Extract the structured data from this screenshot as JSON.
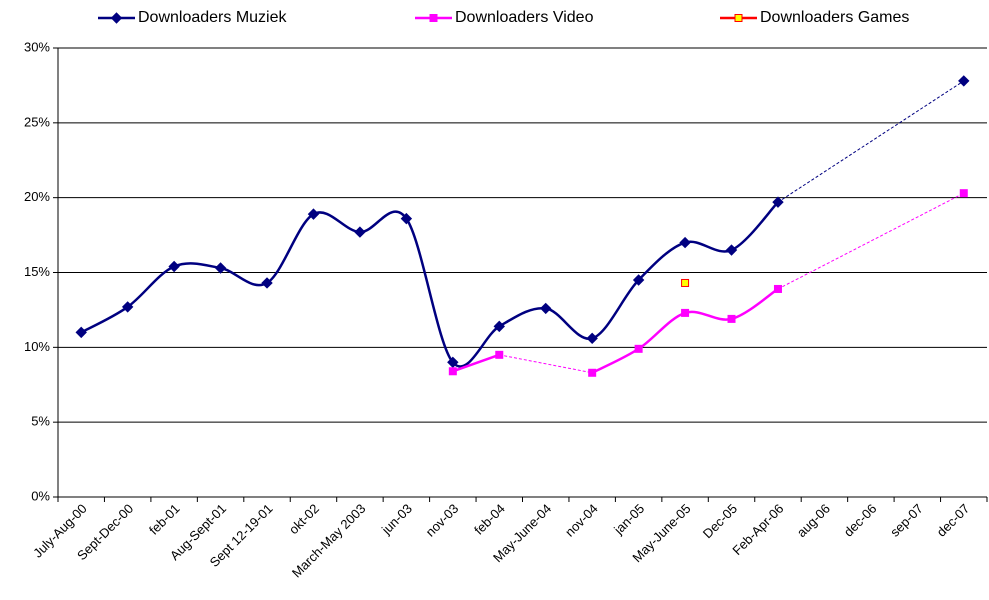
{
  "chart_data": {
    "type": "line",
    "categories": [
      "July-Aug-00",
      "Sept-Dec-00",
      "feb-01",
      "Aug-Sept-01",
      "Sept 12-19-01",
      "okt-02",
      "March-May 2003",
      "jun-03",
      "nov-03",
      "feb-04",
      "May-June-04",
      "nov-04",
      "jan-05",
      "May-June-05",
      "Dec-05",
      "Feb-Apr-06",
      "aug-06",
      "dec-06",
      "sep-07",
      "dec-07"
    ],
    "series": [
      {
        "name": "Downloaders Muziek",
        "color": "#000080",
        "marker": "diamond",
        "values": [
          11.0,
          12.7,
          15.4,
          15.3,
          14.3,
          18.9,
          17.7,
          18.6,
          9.0,
          11.4,
          12.6,
          10.6,
          14.5,
          17.0,
          16.5,
          19.7,
          null,
          null,
          null,
          27.8
        ]
      },
      {
        "name": "Downloaders Video",
        "color": "#ff00ff",
        "marker": "square",
        "values": [
          null,
          null,
          null,
          null,
          null,
          null,
          null,
          null,
          8.4,
          9.5,
          null,
          8.3,
          9.9,
          12.3,
          11.9,
          13.9,
          null,
          null,
          null,
          20.3
        ]
      },
      {
        "name": "Downloaders Games",
        "color": "#ff0000",
        "marker": "square",
        "marker_fill": "#ffff00",
        "values": [
          null,
          null,
          null,
          null,
          null,
          null,
          null,
          null,
          null,
          null,
          null,
          null,
          null,
          14.3,
          null,
          null,
          null,
          null,
          null,
          null
        ]
      }
    ],
    "ylim": [
      0,
      30
    ],
    "yticks": [
      {
        "value": 0,
        "label": "0%"
      },
      {
        "value": 5,
        "label": "5%"
      },
      {
        "value": 10,
        "label": "10%"
      },
      {
        "value": 15,
        "label": "15%"
      },
      {
        "value": 20,
        "label": "20%"
      },
      {
        "value": 25,
        "label": "25%"
      },
      {
        "value": 30,
        "label": "30%"
      }
    ],
    "grid": true,
    "legend": "top",
    "smooth": true
  }
}
